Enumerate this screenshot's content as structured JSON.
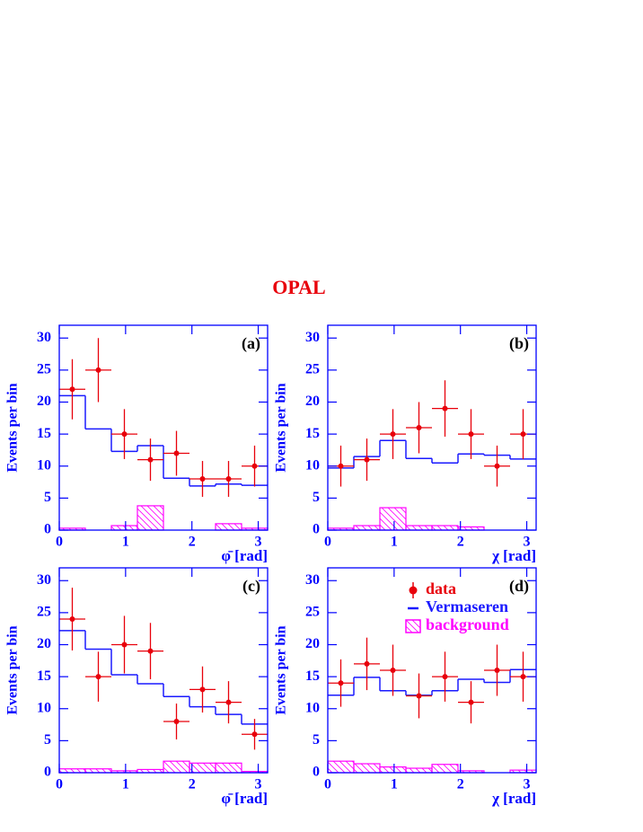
{
  "title": "OPAL",
  "title_color": "#e8000b",
  "chart_data": [
    {
      "type": "histogram",
      "label": "(a)",
      "xlabel": "φ̄ [rad]",
      "ylabel": "Events per bin",
      "axis_color": "#0000ff",
      "bins": [
        0,
        0.3927,
        0.7854,
        1.1781,
        1.5708,
        1.9635,
        2.3562,
        2.7489,
        3.1416
      ],
      "xlim": [
        0,
        3.1416
      ],
      "ylim": [
        0,
        32
      ],
      "xticks": [
        0,
        1,
        2,
        3
      ],
      "yticks": [
        0,
        5,
        10,
        15,
        20,
        25,
        30
      ],
      "series": [
        {
          "style": "hatched",
          "color": "#ff00ff",
          "values": [
            0.3,
            0,
            0.7,
            3.8,
            0,
            0,
            1.0,
            0.3
          ]
        },
        {
          "style": "step",
          "color": "#1a1aff",
          "values": [
            21,
            15.8,
            12.3,
            13.2,
            8.1,
            6.9,
            7.2,
            7.0
          ]
        },
        {
          "style": "points",
          "color": "#e8000b",
          "values": [
            22,
            25,
            15,
            11,
            12,
            8,
            8,
            10
          ],
          "errors": [
            4.7,
            5.0,
            3.9,
            3.3,
            3.5,
            2.8,
            2.8,
            3.2
          ]
        }
      ]
    },
    {
      "type": "histogram",
      "label": "(b)",
      "xlabel": "χ [rad]",
      "ylabel": "Events per bin",
      "axis_color": "#0000ff",
      "bins": [
        0,
        0.3927,
        0.7854,
        1.1781,
        1.5708,
        1.9635,
        2.3562,
        2.7489,
        3.1416
      ],
      "xlim": [
        0,
        3.1416
      ],
      "ylim": [
        0,
        32
      ],
      "xticks": [
        0,
        1,
        2,
        3
      ],
      "yticks": [
        0,
        5,
        10,
        15,
        20,
        25,
        30
      ],
      "series": [
        {
          "style": "hatched",
          "color": "#ff00ff",
          "values": [
            0.3,
            0.7,
            3.5,
            0.7,
            0.7,
            0.5,
            0,
            0
          ]
        },
        {
          "style": "step",
          "color": "#1a1aff",
          "values": [
            9.7,
            11.5,
            14.0,
            11.2,
            10.5,
            11.9,
            11.7,
            11.1
          ]
        },
        {
          "style": "points",
          "color": "#e8000b",
          "values": [
            10,
            11,
            15,
            16,
            19,
            15,
            10,
            15
          ],
          "errors": [
            3.2,
            3.3,
            3.9,
            4.0,
            4.4,
            3.9,
            3.2,
            3.9
          ]
        }
      ]
    },
    {
      "type": "histogram",
      "label": "(c)",
      "xlabel": "φ̄ [rad]",
      "ylabel": "Events per bin",
      "axis_color": "#0000ff",
      "bins": [
        0,
        0.3927,
        0.7854,
        1.1781,
        1.5708,
        1.9635,
        2.3562,
        2.7489,
        3.1416
      ],
      "xlim": [
        0,
        3.1416
      ],
      "ylim": [
        0,
        32
      ],
      "xticks": [
        0,
        1,
        2,
        3
      ],
      "yticks": [
        0,
        5,
        10,
        15,
        20,
        25,
        30
      ],
      "series": [
        {
          "style": "hatched",
          "color": "#ff00ff",
          "values": [
            0.6,
            0.6,
            0.3,
            0.5,
            1.8,
            1.5,
            1.5,
            0.2
          ]
        },
        {
          "style": "step",
          "color": "#1a1aff",
          "values": [
            22.2,
            19.3,
            15.3,
            13.9,
            11.9,
            10.3,
            9.1,
            7.6
          ]
        },
        {
          "style": "points",
          "color": "#e8000b",
          "values": [
            24,
            15,
            20,
            19,
            8,
            13,
            11,
            6
          ],
          "errors": [
            4.9,
            3.9,
            4.5,
            4.4,
            2.8,
            3.6,
            3.3,
            2.4
          ]
        }
      ]
    },
    {
      "type": "histogram",
      "label": "(d)",
      "xlabel": "χ [rad]",
      "ylabel": "Events per bin",
      "axis_color": "#0000ff",
      "legend": "top-right",
      "bins": [
        0,
        0.3927,
        0.7854,
        1.1781,
        1.5708,
        1.9635,
        2.3562,
        2.7489,
        3.1416
      ],
      "xlim": [
        0,
        3.1416
      ],
      "ylim": [
        0,
        32
      ],
      "xticks": [
        0,
        1,
        2,
        3
      ],
      "yticks": [
        0,
        5,
        10,
        15,
        20,
        25,
        30
      ],
      "series": [
        {
          "name": "background",
          "style": "hatched",
          "color": "#ff00ff",
          "values": [
            1.8,
            1.4,
            0.9,
            0.7,
            1.3,
            0.3,
            0,
            0.4
          ]
        },
        {
          "name": "Vermaseren",
          "style": "step",
          "color": "#1a1aff",
          "values": [
            12.1,
            14.9,
            12.8,
            12.1,
            12.8,
            14.6,
            14.1,
            16.1
          ]
        },
        {
          "name": "data",
          "style": "points",
          "color": "#e8000b",
          "values": [
            14,
            17,
            16,
            12,
            15,
            11,
            16,
            15
          ],
          "errors": [
            3.7,
            4.1,
            4.0,
            3.5,
            3.9,
            3.3,
            4.0,
            3.9
          ]
        }
      ]
    }
  ]
}
